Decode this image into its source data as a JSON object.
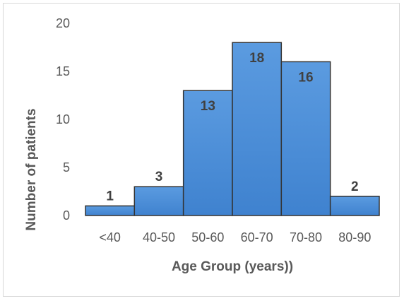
{
  "chart_data": {
    "type": "bar",
    "title": "",
    "xlabel": "Age Group (years))",
    "ylabel": "Number of patients",
    "categories": [
      "<40",
      "40-50",
      "50-60",
      "60-70",
      "70-80",
      "80-90"
    ],
    "values": [
      1,
      3,
      13,
      18,
      16,
      2
    ],
    "data_labels": [
      "1",
      "3",
      "13",
      "18",
      "16",
      "2"
    ],
    "ylim": [
      0,
      20
    ],
    "yticks": [
      0,
      5,
      10,
      15,
      20
    ],
    "grid": false,
    "legend": "none",
    "bar_color": "#4a8fd6",
    "bar_edge_color": "#333333"
  }
}
